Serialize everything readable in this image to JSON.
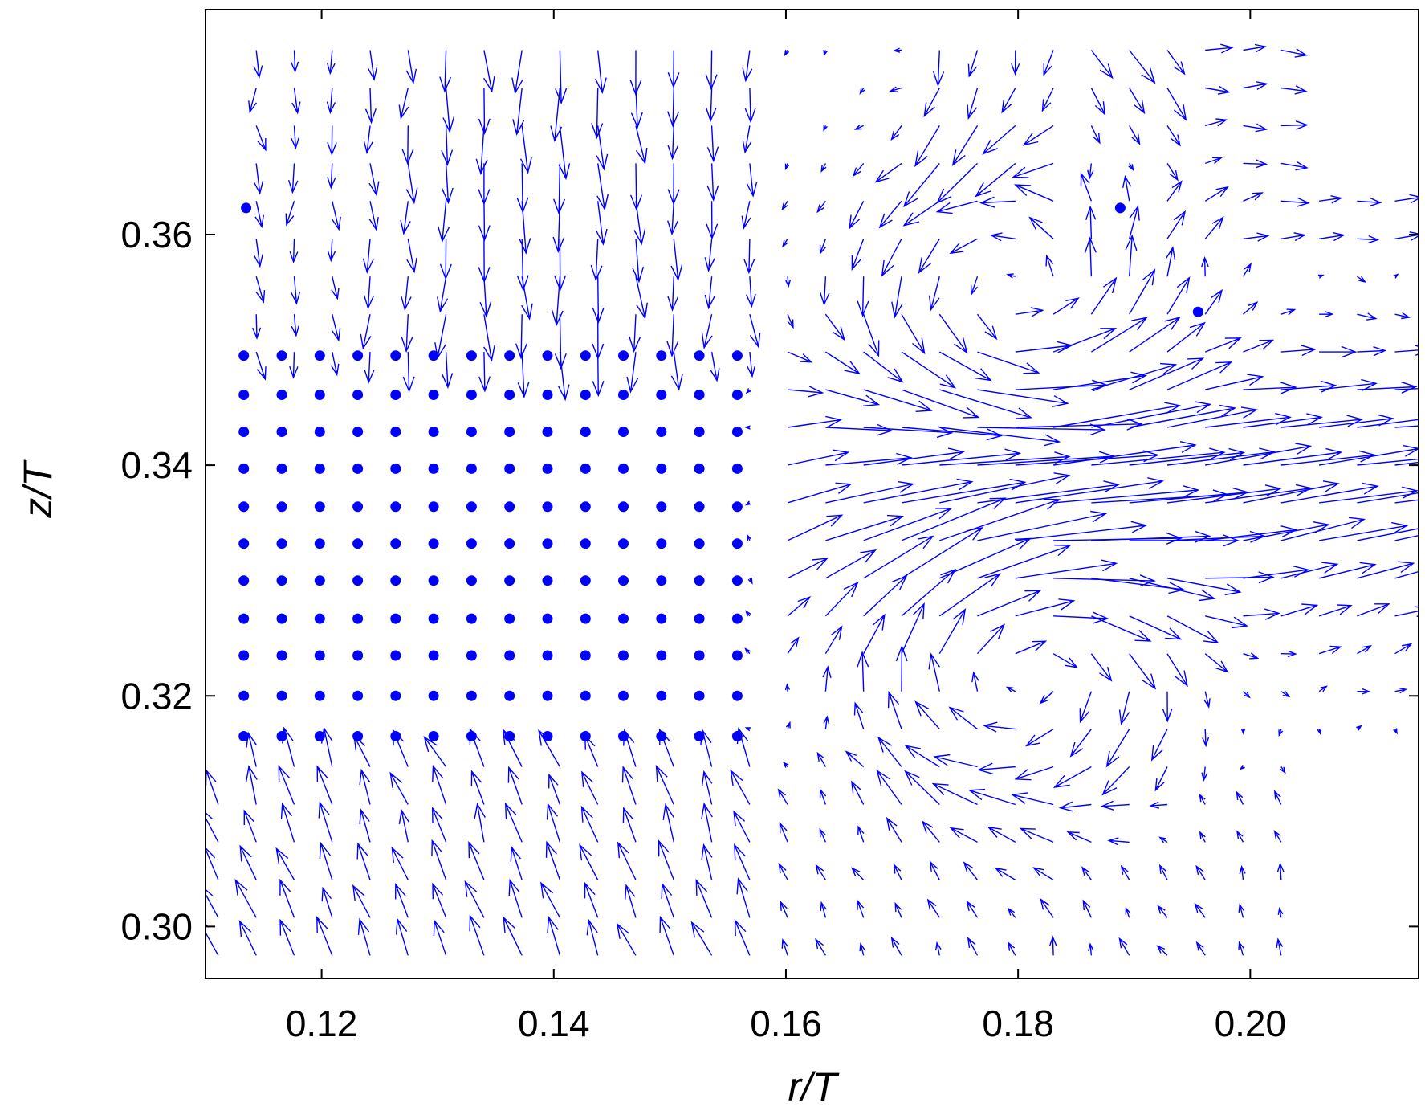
{
  "chart_data": {
    "type": "quiver",
    "title": "",
    "xlabel": "r/T",
    "ylabel": "z/T",
    "xlim": [
      0.11,
      0.2145
    ],
    "ylim": [
      0.2955,
      0.3795
    ],
    "grid": false,
    "legend": "none",
    "color": "#0000ff",
    "xticks": [
      0.12,
      0.14,
      0.16,
      0.18,
      0.2
    ],
    "xtick_labels": [
      "0.12",
      "0.14",
      "0.16",
      "0.18",
      "0.20"
    ],
    "yticks": [
      0.3,
      0.32,
      0.34,
      0.36
    ],
    "ytick_labels": [
      "0.30",
      "0.32",
      "0.34",
      "0.36"
    ],
    "grid_spacing": {
      "dr": 0.00327,
      "dz": 0.00327
    },
    "masked_region": {
      "r": [
        0.1133,
        0.1564
      ],
      "z": [
        0.3165,
        0.3495
      ]
    },
    "vortex_centers": [
      {
        "r": 0.1795,
        "z": 0.3545,
        "sense": "counterclockwise"
      },
      {
        "r": 0.18,
        "z": 0.323,
        "sense": "clockwise"
      }
    ],
    "jet_axis_z": 0.338,
    "scattered_points": [
      {
        "r": 0.1135,
        "z": 0.3623
      },
      {
        "r": 0.1888,
        "z": 0.3623
      },
      {
        "r": 0.1955,
        "z": 0.3533
      }
    ],
    "regions": [
      {
        "name": "upper-left downflow",
        "r": [
          0.113,
          0.157
        ],
        "z": [
          0.35,
          0.376
        ],
        "u": 0.0,
        "w": -1.0
      },
      {
        "name": "lower-left upflow",
        "r": [
          0.111,
          0.157
        ],
        "z": [
          0.297,
          0.316
        ],
        "u": -0.3,
        "w": 1.0
      },
      {
        "name": "radial jet",
        "r": [
          0.159,
          0.214
        ],
        "z": [
          0.324,
          0.349
        ],
        "u": 1.0,
        "w": 0.3
      }
    ]
  }
}
